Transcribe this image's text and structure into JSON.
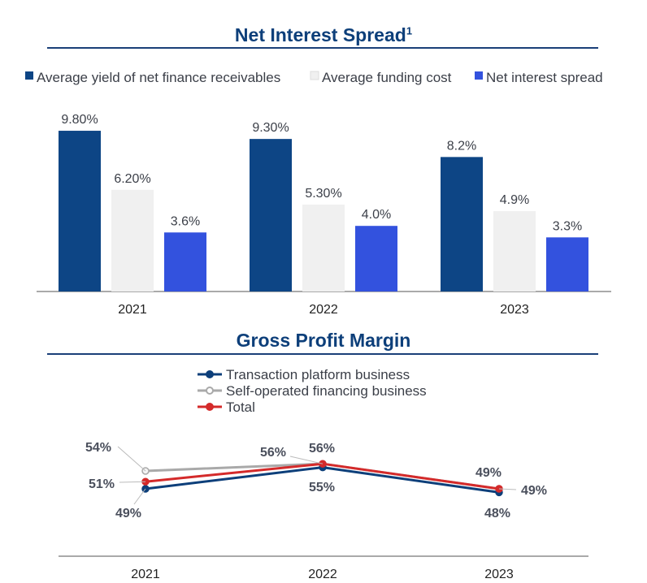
{
  "colors": {
    "title": "#0d3f7a",
    "text": "#3b3f48",
    "rule": "#1a3f78",
    "axis": "#555555",
    "avg_yield": "#0d4585",
    "funding_cost": "#f0f0f0",
    "net_spread": "#3352de",
    "transaction": "#0d3f7a",
    "self_operated": "#a9a9a9",
    "total": "#d42a2a",
    "leader": "#bbbbbb"
  },
  "chart_data": [
    {
      "type": "bar",
      "title": "Net Interest Spread",
      "title_superscript": "1",
      "categories": [
        "2021",
        "2022",
        "2023"
      ],
      "series": [
        {
          "name": "Average yield of net finance receivables",
          "values": [
            9.8,
            9.3,
            8.2
          ],
          "labels": [
            "9.80%",
            "9.30%",
            "8.2%"
          ],
          "color": "#0d4585"
        },
        {
          "name": "Average funding cost",
          "values": [
            6.2,
            5.3,
            4.9
          ],
          "labels": [
            "6.20%",
            "5.30%",
            "4.9%"
          ],
          "color": "#f0f0f0"
        },
        {
          "name": "Net interest spread",
          "values": [
            3.6,
            4.0,
            3.3
          ],
          "labels": [
            "3.6%",
            "4.0%",
            "3.3%"
          ],
          "color": "#3352de"
        }
      ],
      "legend": "top",
      "grid": false,
      "ylim": [
        0,
        11
      ]
    },
    {
      "type": "line",
      "title": "Gross Profit Margin",
      "categories": [
        "2021",
        "2022",
        "2023"
      ],
      "series": [
        {
          "name": "Transaction platform business",
          "values": [
            49,
            55,
            48
          ],
          "labels": [
            "49%",
            "55%",
            "48%"
          ],
          "color": "#0d3f7a"
        },
        {
          "name": "Self-operated financing business",
          "values": [
            54,
            56,
            49
          ],
          "labels": [
            "54%",
            "56%",
            "49%"
          ],
          "color": "#a9a9a9"
        },
        {
          "name": "Total",
          "values": [
            51,
            56,
            49
          ],
          "labels": [
            "51%",
            "56%",
            "49%"
          ],
          "color": "#d42a2a"
        }
      ],
      "legend": "top",
      "grid": false,
      "ylim": [
        40,
        62
      ]
    }
  ]
}
